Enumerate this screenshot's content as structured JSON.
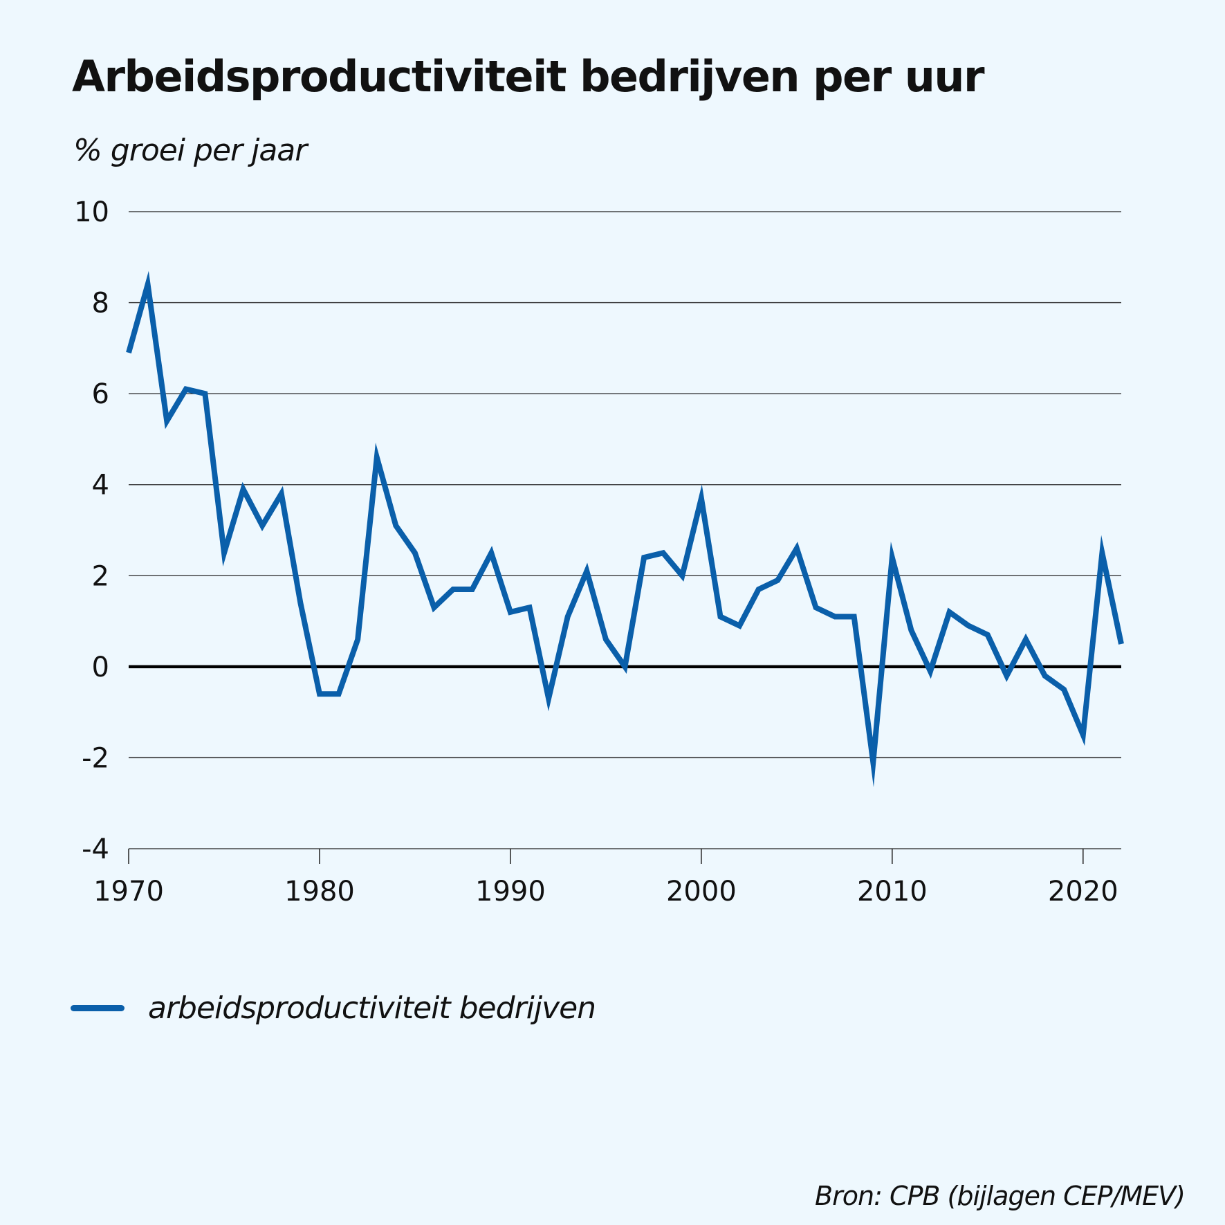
{
  "chart_data": {
    "type": "line",
    "title": "Arbeidsproductiviteit bedrijven per uur",
    "ylabel": "% groei per jaar",
    "xlabel": "",
    "xlim": [
      1970,
      2022
    ],
    "ylim": [
      -4,
      10
    ],
    "yticks": [
      10,
      8,
      6,
      4,
      2,
      0,
      -2,
      -4
    ],
    "ytick_labels": [
      "10",
      "8",
      "6",
      "4",
      "2",
      "0",
      "-2",
      "-4"
    ],
    "xticks": [
      1970,
      1980,
      1990,
      2000,
      2010,
      2020
    ],
    "xtick_labels": [
      "1970",
      "1980",
      "1990",
      "2000",
      "2010",
      "2020"
    ],
    "grid": "horizontal",
    "zero_line": true,
    "legend_position": "bottom-left",
    "series": [
      {
        "name": "arbeidsproductiviteit bedrijven",
        "color": "#0a5faa",
        "x": [
          1970,
          1971,
          1972,
          1973,
          1974,
          1975,
          1976,
          1977,
          1978,
          1979,
          1980,
          1981,
          1982,
          1983,
          1984,
          1985,
          1986,
          1987,
          1988,
          1989,
          1990,
          1991,
          1992,
          1993,
          1994,
          1995,
          1996,
          1997,
          1998,
          1999,
          2000,
          2001,
          2002,
          2003,
          2004,
          2005,
          2006,
          2007,
          2008,
          2009,
          2010,
          2011,
          2012,
          2013,
          2014,
          2015,
          2016,
          2017,
          2018,
          2019,
          2020,
          2021,
          2022
        ],
        "values": [
          6.9,
          8.4,
          5.4,
          6.1,
          6.0,
          2.5,
          3.9,
          3.1,
          3.8,
          1.4,
          -0.6,
          -0.6,
          0.6,
          4.6,
          3.1,
          2.5,
          1.3,
          1.7,
          1.7,
          2.5,
          1.2,
          1.3,
          -0.7,
          1.1,
          2.1,
          0.6,
          0.0,
          2.4,
          2.5,
          2.0,
          3.7,
          1.1,
          0.9,
          1.7,
          1.9,
          2.6,
          1.3,
          1.1,
          1.1,
          -2.1,
          2.4,
          0.8,
          -0.1,
          1.2,
          0.9,
          0.7,
          -0.2,
          0.6,
          -0.2,
          -0.5,
          -1.5,
          2.5,
          0.5
        ]
      }
    ]
  },
  "legend": {
    "label": "arbeidsproductiviteit bedrijven"
  },
  "source": "Bron: CPB (bijlagen CEP/MEV)"
}
